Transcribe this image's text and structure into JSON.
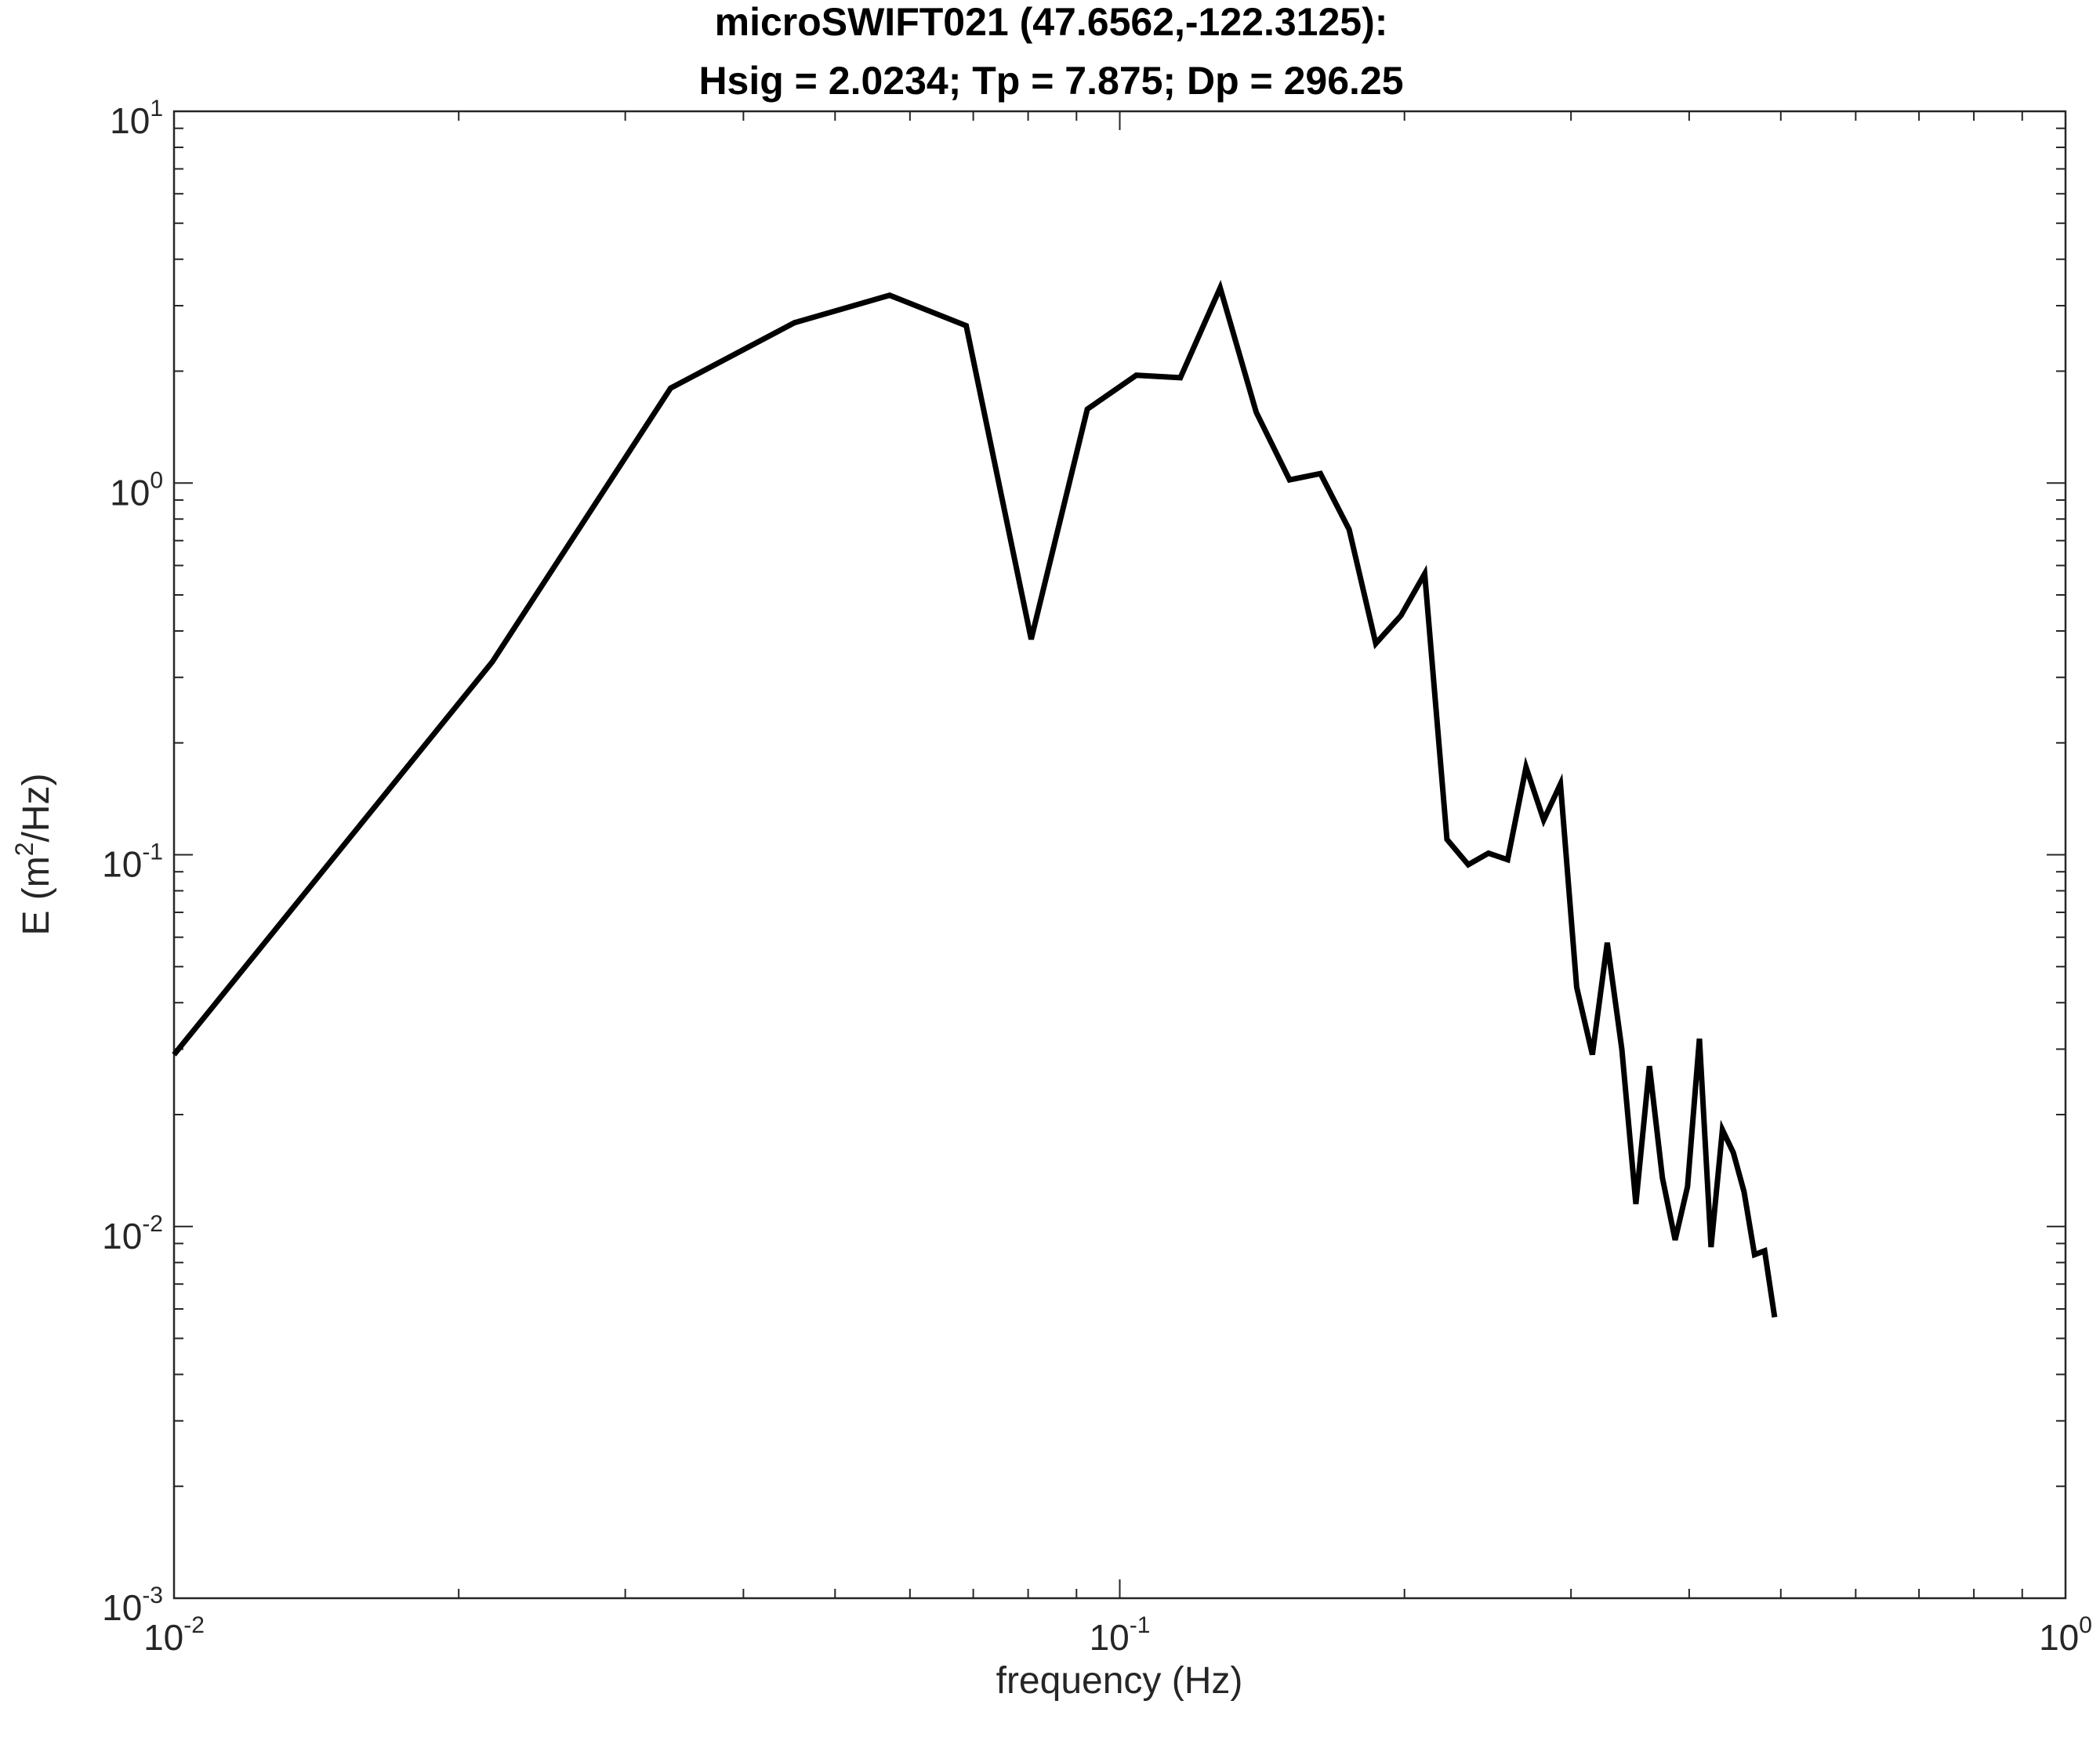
{
  "chart_data": {
    "type": "line",
    "title": [
      "microSWIFT021 (47.6562,-122.3125):",
      "Hsig = 2.0234; Tp = 7.875; Dp = 296.25"
    ],
    "xlabel": "frequency (Hz)",
    "ylabel_parts": [
      "E (m",
      "2",
      "/Hz)"
    ],
    "xscale": "log",
    "yscale": "log",
    "xlim": [
      0.01,
      1
    ],
    "ylim": [
      0.001,
      10
    ],
    "x_ticks": [
      {
        "base": "10",
        "exp": "-2",
        "value": 0.01
      },
      {
        "base": "10",
        "exp": "-1",
        "value": 0.1
      },
      {
        "base": "10",
        "exp": "0",
        "value": 1
      }
    ],
    "y_ticks": [
      {
        "base": "10",
        "exp": "-3",
        "value": 0.001
      },
      {
        "base": "10",
        "exp": "-2",
        "value": 0.01
      },
      {
        "base": "10",
        "exp": "-1",
        "value": 0.1
      },
      {
        "base": "10",
        "exp": "0",
        "value": 1
      },
      {
        "base": "10",
        "exp": "1",
        "value": 10
      }
    ],
    "grid": false,
    "line_color": "#000000",
    "series": [
      {
        "x": [
          0.01,
          0.0217,
          0.0335,
          0.0453,
          0.0571,
          0.0688,
          0.0806,
          0.0924,
          0.1041,
          0.1159,
          0.1277,
          0.1394,
          0.1512,
          0.163,
          0.1748,
          0.1865,
          0.1983,
          0.2101,
          0.2218,
          0.2336,
          0.2454,
          0.2571,
          0.2689,
          0.2807,
          0.2924,
          0.3042,
          0.316,
          0.3277,
          0.3395,
          0.3513,
          0.3631,
          0.3748,
          0.3866,
          0.3984,
          0.4101,
          0.4219,
          0.4337,
          0.4454,
          0.4572,
          0.469,
          0.4807,
          0.4925
        ],
        "y": [
          0.029,
          0.33,
          1.8,
          2.7,
          3.2,
          2.65,
          0.38,
          1.58,
          1.95,
          1.92,
          3.35,
          1.55,
          1.02,
          1.06,
          0.75,
          0.37,
          0.44,
          0.57,
          0.11,
          0.094,
          0.101,
          0.097,
          0.172,
          0.124,
          0.155,
          0.044,
          0.029,
          0.058,
          0.03,
          0.0115,
          0.027,
          0.0135,
          0.0092,
          0.0128,
          0.032,
          0.0088,
          0.0182,
          0.0158,
          0.0124,
          0.0084,
          0.0086,
          0.0057
        ]
      }
    ]
  }
}
